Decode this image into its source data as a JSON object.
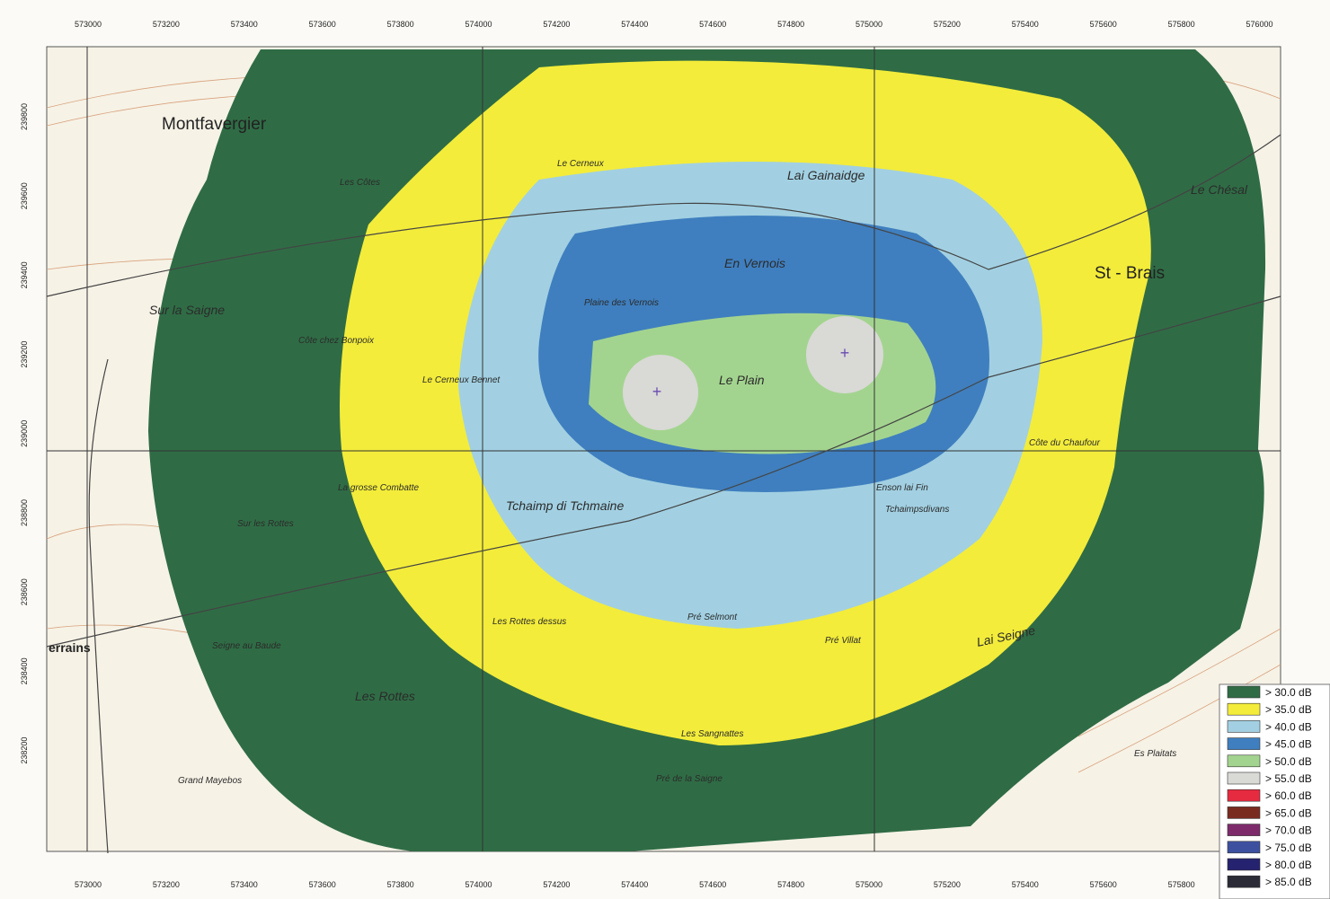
{
  "axis": {
    "top": [
      573000,
      573200,
      573400,
      573600,
      573800,
      574000,
      574200,
      574400,
      574600,
      574800,
      575000,
      575200,
      575400,
      575600,
      575800,
      576000
    ],
    "bottom": [
      573000,
      573200,
      573400,
      573600,
      573800,
      574000,
      574200,
      574400,
      574600,
      574800,
      575000,
      575200,
      575400,
      575600,
      575800
    ],
    "left": [
      239800,
      239600,
      239400,
      239200,
      239000,
      238800,
      238600,
      238400,
      238200
    ]
  },
  "places": [
    "Montfavergier",
    "St - Brais",
    "Lai Gainaidge",
    "En Vernois",
    "Le Plain",
    "Tchaimp di Tchmaine",
    "Lai Seigne",
    "Le Cerneux",
    "Sur la Saigne",
    "Les Rottes",
    "Grand Mayebos",
    "Pré Selmont",
    "Pré Villat",
    "Le Chésal",
    "Côte du Chaufour",
    "Les Rottes dessus",
    "Le Cerneux Bennet",
    "La grosse Combatte",
    "Enson lai Fin",
    "Tchaimpsdivans",
    "Es Plaitats",
    "Côte chez Bonpoix",
    "Plaine des Vernois",
    "Seigne au Baude",
    "Les Côtes",
    "Sur les Rottes",
    "Pré de la Saigne",
    "Les Sangnattes",
    "errains"
  ],
  "legend": [
    {
      "label": "> 30.0 dB",
      "color": "#2f6c45"
    },
    {
      "label": "> 35.0 dB",
      "color": "#f3ec3a"
    },
    {
      "label": "> 40.0 dB",
      "color": "#a2d0e2"
    },
    {
      "label": "> 45.0 dB",
      "color": "#3f7fbf"
    },
    {
      "label": "> 50.0 dB",
      "color": "#a3d48f"
    },
    {
      "label": "> 55.0 dB",
      "color": "#d9d9d6"
    },
    {
      "label": "> 60.0 dB",
      "color": "#e62a3f"
    },
    {
      "label": "> 65.0 dB",
      "color": "#7a2b20"
    },
    {
      "label": "> 70.0 dB",
      "color": "#7e2b6b"
    },
    {
      "label": "> 75.0 dB",
      "color": "#3d50a0"
    },
    {
      "label": "> 80.0 dB",
      "color": "#25226f"
    },
    {
      "label": "> 85.0 dB",
      "color": "#2b2b38"
    }
  ]
}
